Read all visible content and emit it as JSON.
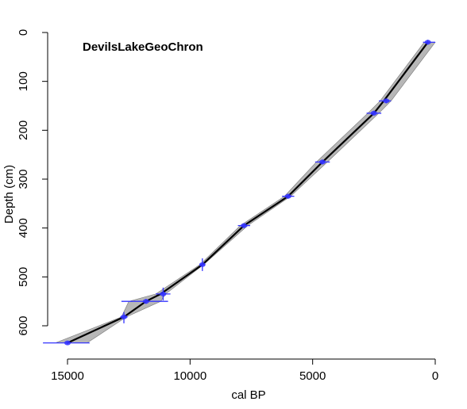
{
  "chart_data": {
    "type": "line",
    "title": "DevilsLakeGeoChron",
    "xlabel": "cal BP",
    "ylabel": "Depth (cm)",
    "x_reversed": true,
    "y_reversed": true,
    "xlim": [
      15600,
      -700
    ],
    "ylim": [
      -3,
      660
    ],
    "x_ticks": [
      15000,
      10000,
      5000,
      0
    ],
    "y_ticks": [
      0,
      100,
      200,
      300,
      400,
      500,
      600
    ],
    "grid": false,
    "series": [
      {
        "role": "median-age-depth",
        "color": "#000000",
        "points": [
          {
            "age": 300,
            "depth": 20
          },
          {
            "age": 2100,
            "depth": 140
          },
          {
            "age": 2500,
            "depth": 165
          },
          {
            "age": 4600,
            "depth": 265
          },
          {
            "age": 6000,
            "depth": 335
          },
          {
            "age": 7800,
            "depth": 395
          },
          {
            "age": 9500,
            "depth": 475
          },
          {
            "age": 11200,
            "depth": 535
          },
          {
            "age": 11800,
            "depth": 550
          },
          {
            "age": 12700,
            "depth": 582
          },
          {
            "age": 15000,
            "depth": 635
          }
        ]
      },
      {
        "role": "uncertainty-band",
        "color": "#aaaaaa",
        "lower": [
          {
            "age": 0,
            "depth": 20
          },
          {
            "age": 1800,
            "depth": 140
          },
          {
            "age": 2300,
            "depth": 165
          },
          {
            "age": 4400,
            "depth": 265
          },
          {
            "age": 5900,
            "depth": 335
          },
          {
            "age": 7650,
            "depth": 395
          },
          {
            "age": 9450,
            "depth": 475
          },
          {
            "age": 11000,
            "depth": 535
          },
          {
            "age": 11200,
            "depth": 550
          },
          {
            "age": 12600,
            "depth": 582
          },
          {
            "age": 14200,
            "depth": 635
          }
        ],
        "upper": [
          {
            "age": 450,
            "depth": 20
          },
          {
            "age": 2250,
            "depth": 140
          },
          {
            "age": 2750,
            "depth": 165
          },
          {
            "age": 4850,
            "depth": 265
          },
          {
            "age": 6150,
            "depth": 335
          },
          {
            "age": 7950,
            "depth": 395
          },
          {
            "age": 9600,
            "depth": 475
          },
          {
            "age": 11400,
            "depth": 535
          },
          {
            "age": 12500,
            "depth": 550
          },
          {
            "age": 12800,
            "depth": 582
          },
          {
            "age": 15500,
            "depth": 635
          }
        ]
      }
    ],
    "dated_samples": {
      "color": "#3333ff",
      "points": [
        {
          "age": 300,
          "age_lo": 0,
          "age_hi": 500,
          "depth": 20,
          "depth_lo": 15,
          "depth_hi": 25
        },
        {
          "age": 2000,
          "age_lo": 1800,
          "age_hi": 2300,
          "depth": 140,
          "depth_lo": 135,
          "depth_hi": 145
        },
        {
          "age": 2500,
          "age_lo": 2200,
          "age_hi": 2800,
          "depth": 165,
          "depth_lo": 160,
          "depth_hi": 170
        },
        {
          "age": 4600,
          "age_lo": 4300,
          "age_hi": 4900,
          "depth": 265,
          "depth_lo": 260,
          "depth_hi": 270
        },
        {
          "age": 6000,
          "age_lo": 5750,
          "age_hi": 6250,
          "depth": 335,
          "depth_lo": 330,
          "depth_hi": 340
        },
        {
          "age": 7800,
          "age_lo": 7550,
          "age_hi": 8050,
          "depth": 395,
          "depth_lo": 390,
          "depth_hi": 400
        },
        {
          "age": 9500,
          "age_lo": 9400,
          "age_hi": 9600,
          "depth": 475,
          "depth_lo": 462,
          "depth_hi": 488
        },
        {
          "age": 11100,
          "age_lo": 10800,
          "age_hi": 11400,
          "depth": 535,
          "depth_lo": 522,
          "depth_hi": 548
        },
        {
          "age": 11800,
          "age_lo": 10900,
          "age_hi": 12800,
          "depth": 550,
          "depth_lo": 545,
          "depth_hi": 555
        },
        {
          "age": 12700,
          "age_lo": 12550,
          "age_hi": 12850,
          "depth": 582,
          "depth_lo": 572,
          "depth_hi": 595
        },
        {
          "age": 15000,
          "age_lo": 14100,
          "age_hi": 16000,
          "depth": 635,
          "depth_lo": 632,
          "depth_hi": 638
        }
      ]
    }
  }
}
